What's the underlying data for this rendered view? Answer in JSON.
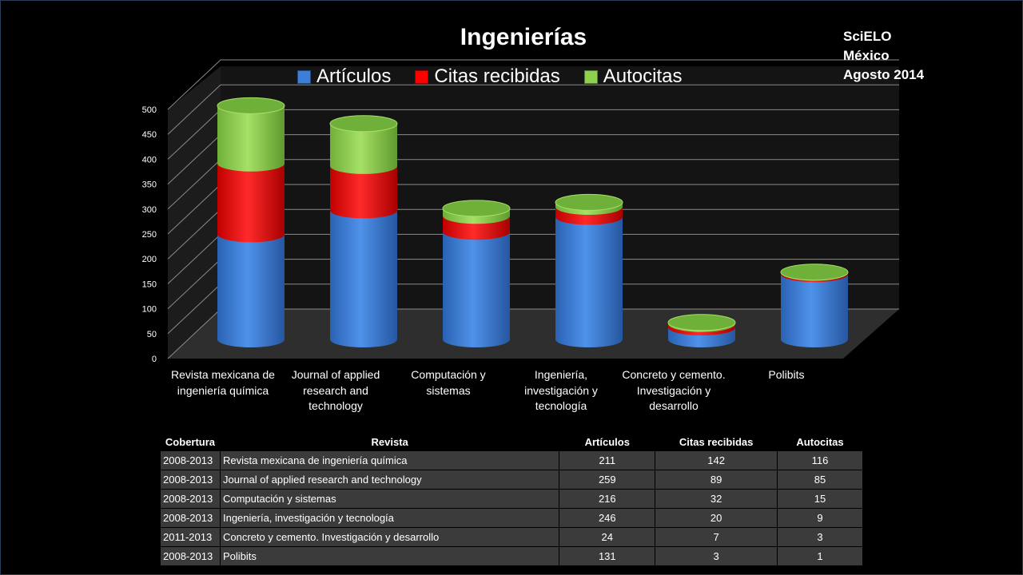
{
  "source": [
    "SciELO",
    "México",
    "Agosto 2014"
  ],
  "chart_data": {
    "type": "bar",
    "title": "Ingenierías",
    "stacked": true,
    "categories": [
      "Revista mexicana de ingeniería química",
      "Journal of applied research and technology",
      "Computación y sistemas",
      "Ingeniería, investigación y tecnología",
      "Concreto y cemento. Investigación y desarrollo",
      "Polibits"
    ],
    "series": [
      {
        "name": "Artículos",
        "values": [
          211,
          259,
          216,
          246,
          24,
          131
        ],
        "color": "#3d7fd8"
      },
      {
        "name": "Citas recibidas",
        "values": [
          142,
          89,
          32,
          20,
          7,
          3
        ],
        "color": "#ff0000"
      },
      {
        "name": "Autocitas",
        "values": [
          116,
          85,
          15,
          9,
          3,
          1
        ],
        "color": "#8fd14f"
      }
    ],
    "ylim": [
      0,
      500
    ],
    "yticks": [
      "0",
      "50",
      "100",
      "150",
      "200",
      "250",
      "300",
      "350",
      "400",
      "450",
      "500"
    ],
    "grid": true,
    "legend_position": "top"
  },
  "table": {
    "headers": [
      "Cobertura",
      "Revista",
      "Artículos",
      "Citas recibidas",
      "Autocitas"
    ],
    "rows": [
      [
        "2008-2013",
        "Revista mexicana de ingeniería química",
        "211",
        "142",
        "116"
      ],
      [
        "2008-2013",
        "Journal of applied research and technology",
        "259",
        "89",
        "85"
      ],
      [
        "2008-2013",
        "Computación y sistemas",
        "216",
        "32",
        "15"
      ],
      [
        "2008-2013",
        "Ingeniería, investigación y tecnología",
        "246",
        "20",
        "9"
      ],
      [
        "2011-2013",
        "Concreto y cemento. Investigación y desarrollo",
        "24",
        "7",
        "3"
      ],
      [
        "2008-2013",
        "Polibits",
        "131",
        "3",
        "1"
      ]
    ]
  }
}
